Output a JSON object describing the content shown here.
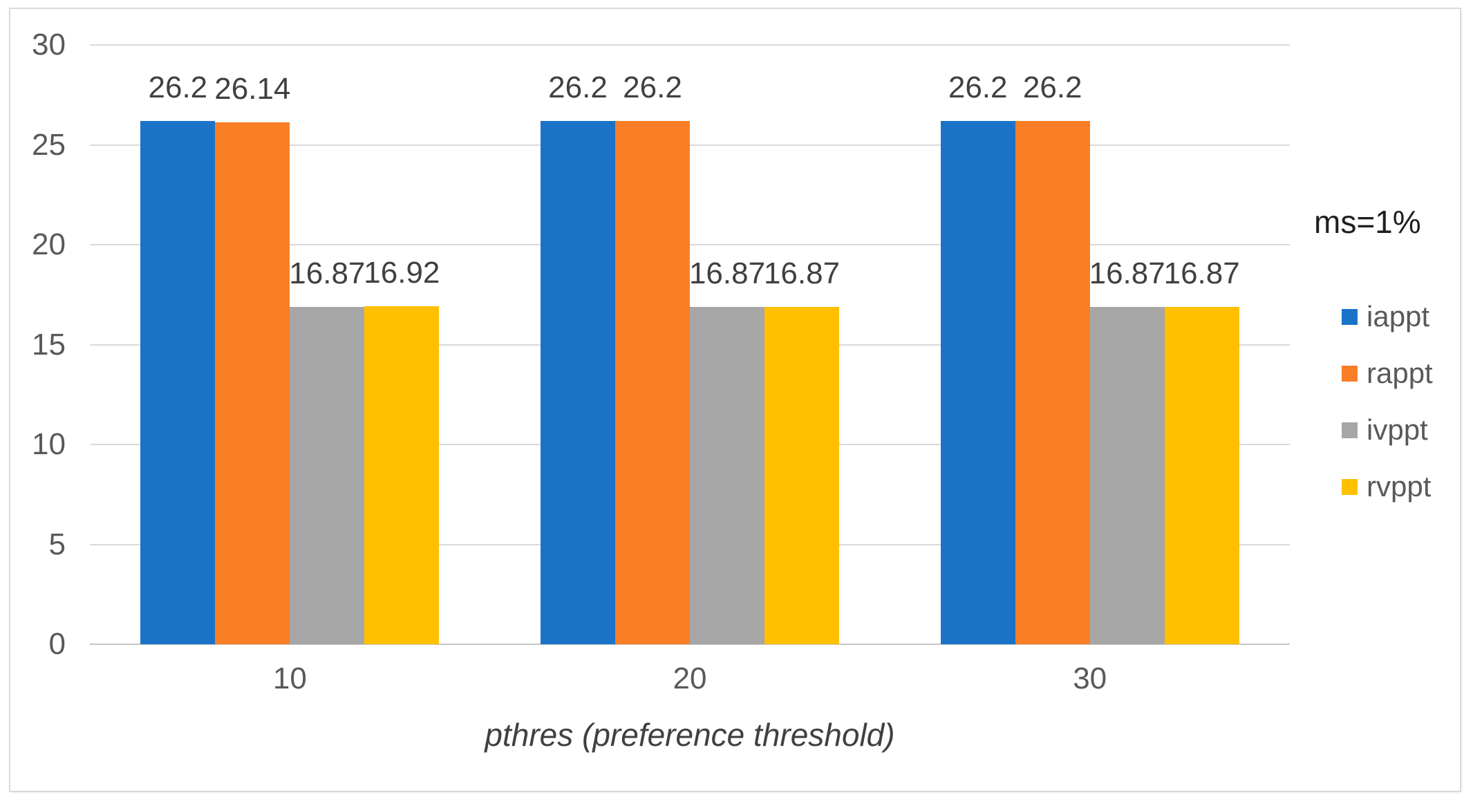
{
  "chart_data": {
    "type": "bar",
    "title": "",
    "legend_title": "ms=1%",
    "xlabel": "pthres (preference threshold)",
    "ylabel": "",
    "categories": [
      "10",
      "20",
      "30"
    ],
    "series": [
      {
        "name": "iappt",
        "color": "#1b73c8",
        "values": [
          26.2,
          26.2,
          26.2
        ],
        "labels": [
          "26.2",
          "26.2",
          "26.2"
        ]
      },
      {
        "name": "rappt",
        "color": "#fa7e26",
        "values": [
          26.14,
          26.2,
          26.2
        ],
        "labels": [
          "26.14",
          "26.2",
          "26.2"
        ]
      },
      {
        "name": "ivppt",
        "color": "#a6a6a6",
        "values": [
          16.87,
          16.87,
          16.87
        ],
        "labels": [
          "16.87",
          "16.87",
          "16.87"
        ]
      },
      {
        "name": "rvppt",
        "color": "#ffc000",
        "values": [
          16.92,
          16.87,
          16.87
        ],
        "labels": [
          "16.92",
          "16.87",
          "16.87"
        ]
      }
    ],
    "ylim": [
      0,
      30
    ],
    "ytick_step": 5,
    "yticks": [
      "0",
      "5",
      "10",
      "15",
      "20",
      "25",
      "30"
    ],
    "grid": true,
    "legend_position": "right",
    "colors": {
      "gridline": "#d9d9d9",
      "axis_line": "#c6c6c6",
      "tick_text": "#595959",
      "data_label_text": "#404040",
      "frame_border": "#d9d9d9"
    }
  }
}
